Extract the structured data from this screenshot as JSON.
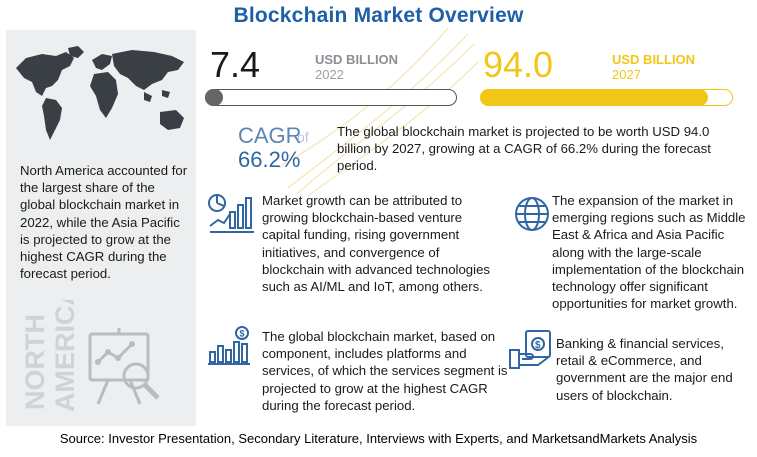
{
  "title": "Blockchain Market Overview",
  "left_panel": {
    "text": "North America accounted for the largest share of the global blockchain market in 2022, while the Asia Pacific is projected to grow at the highest CAGR during the forecast period.",
    "vertical_label_line1": "NORTH",
    "vertical_label_line2": "AMERICA"
  },
  "market_2022": {
    "value": "7.4",
    "unit": "USD BILLION",
    "year": "2022",
    "bar_fill_fraction": 0.07
  },
  "market_2027": {
    "value": "94.0",
    "unit": "USD BILLION",
    "year": "2027",
    "bar_fill_fraction": 0.9
  },
  "cagr": {
    "label": "CAGR",
    "of": "of",
    "value": "66.2%",
    "text": "The global blockchain market is projected to be worth USD 94.0 billion by 2027, growing at a CAGR of 66.2% during the forecast period."
  },
  "points": {
    "p1": "Market growth can be attributed to growing blockchain-based venture capital funding, rising government initiatives, and convergence of blockchain with advanced technologies such as AI/ML and IoT, among others.",
    "p2": "The expansion of the market in emerging regions such as Middle East & Africa and Asia Pacific along with the large-scale implementation of the blockchain technology offer significant opportunities for market growth.",
    "p3": "The global blockchain market, based on component, includes platforms and services, of which the services segment is projected to grow at the highest CAGR during the forecast period.",
    "p4": "Banking & financial services, retail & eCommerce, and government are the major end users of blockchain."
  },
  "source": "Source: Investor Presentation, Secondary Literature, Interviews with Experts, and MarketsandMarkets Analysis",
  "colors": {
    "title": "#1f5fa8",
    "accent_yellow": "#f2c618",
    "cagr_blue": "#2f66a3",
    "panel_gray": "#eceef0"
  },
  "icons": [
    "world-map-icon",
    "analytics-board-icon",
    "growth-chart-icon",
    "globe-icon",
    "dollar-bar-chart-icon",
    "hand-money-icon"
  ]
}
